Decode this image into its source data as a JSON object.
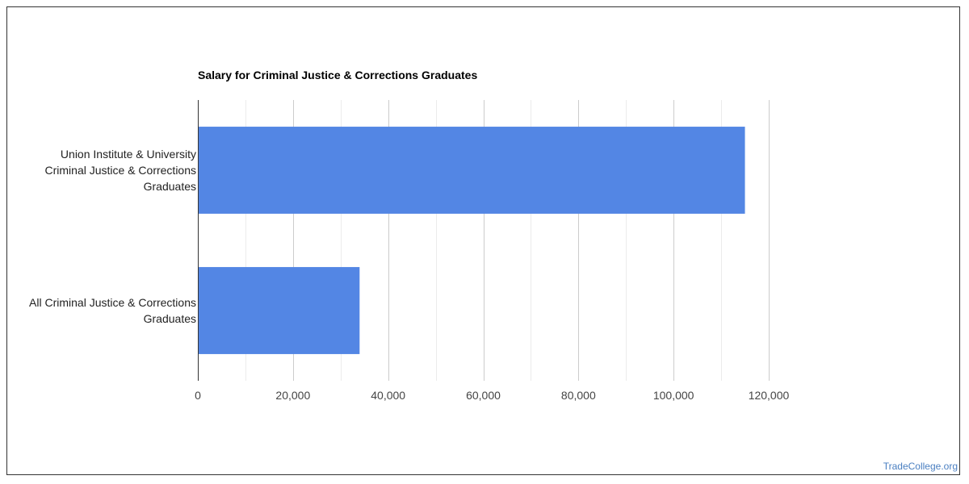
{
  "chart_data": {
    "type": "bar",
    "orientation": "horizontal",
    "title": "Salary for Criminal Justice & Corrections Graduates",
    "categories": [
      "Union Institute & University Criminal Justice & Corrections Graduates",
      "All Criminal Justice & Corrections Graduates"
    ],
    "category_lines": [
      [
        "Union Institute & University",
        "Criminal Justice & Corrections",
        "Graduates"
      ],
      [
        "All Criminal Justice & Corrections",
        "Graduates"
      ]
    ],
    "values": [
      115000,
      34000
    ],
    "xlim": [
      0,
      120000
    ],
    "x_ticks": [
      0,
      20000,
      40000,
      60000,
      80000,
      100000,
      120000
    ],
    "x_tick_labels": [
      "0",
      "20,000",
      "40,000",
      "60,000",
      "80,000",
      "100,000",
      "120,000"
    ],
    "bar_color": "#5386e4",
    "grid": true,
    "legend": "none"
  },
  "watermark": "TradeCollege.org"
}
